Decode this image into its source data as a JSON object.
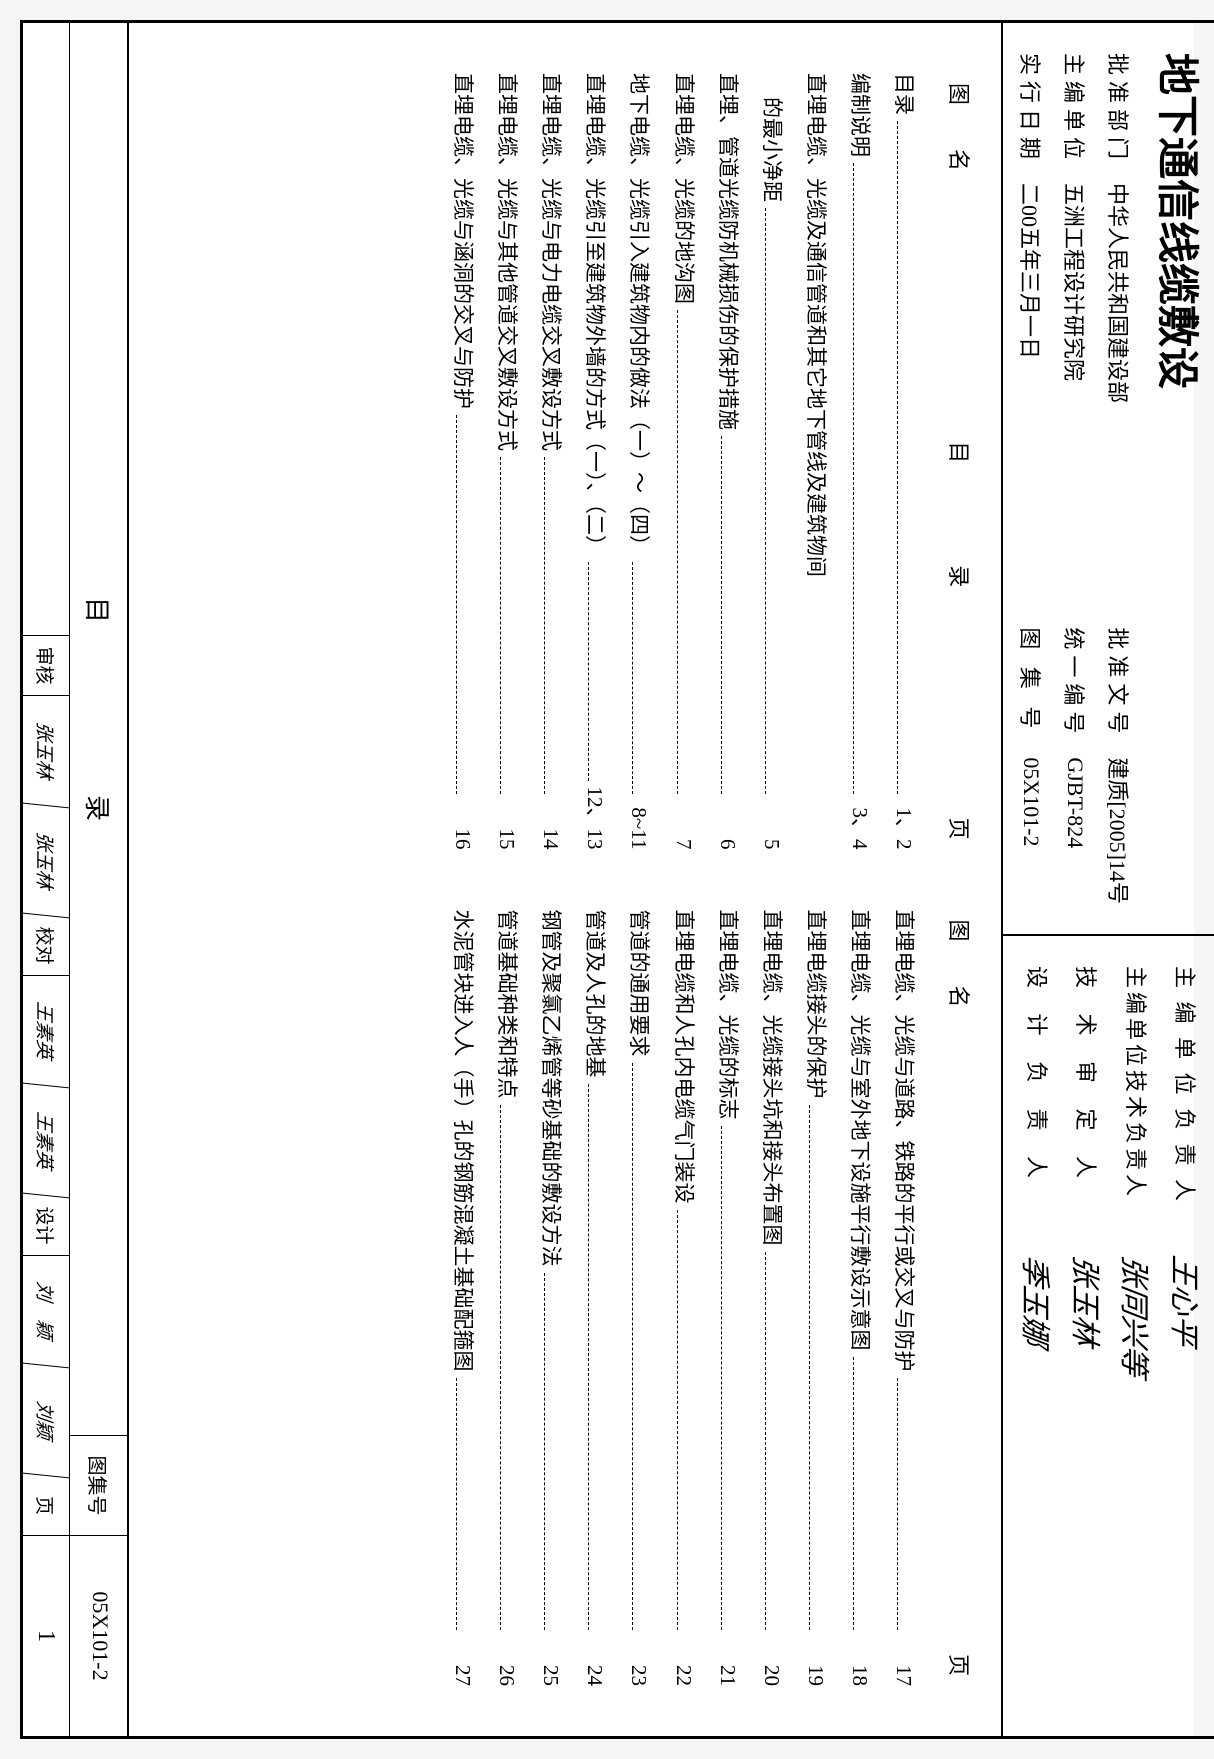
{
  "doc_title": "地下通信线缆敷设",
  "approvals": {
    "dept_label": "批准部门",
    "dept_value": "中华人民共和国建设部",
    "docno_label": "批准文号",
    "docno_value": "建质[2005]14号",
    "editor_label": "主编单位",
    "editor_value": "五洲工程设计研究院",
    "unino_label": "统一编号",
    "unino_value": "GJBT-824",
    "date_label": "实行日期",
    "date_value": "二00五年三月一日",
    "setno_label": "图 集 号",
    "setno_value": "05X101-2"
  },
  "signers": {
    "chief_label": "主 编 单 位 负 责 人",
    "chief_sig": "王心平",
    "tech_label": "主编单位技术负责人",
    "tech_sig": "张同兴等",
    "approve_label": "技 术 审 定 人",
    "approve_sig": "张玉林",
    "design_label": "设 计 负 责 人",
    "design_sig": "季玉娜"
  },
  "toc_header": {
    "tuming": "图　　名",
    "mulu": "目　录",
    "ye": "页"
  },
  "left_col": [
    {
      "name": "目录",
      "page": "1、2"
    },
    {
      "name": "编制说明",
      "page": "3、4"
    },
    {
      "name": "直埋电缆、光缆及通信管道和其它地下管线及建筑物间",
      "page": "",
      "noleader": true
    },
    {
      "name": "的最小净距",
      "page": "5",
      "indent": true
    },
    {
      "name": "直埋、管道光缆防机械损伤的保护措施",
      "page": "6"
    },
    {
      "name": "直埋电缆、光缆的地沟图",
      "page": "7"
    },
    {
      "name": "地下电缆、光缆引入建筑物内的做法（一）～（四）",
      "page": "8~11"
    },
    {
      "name": "直埋电缆、光缆引至建筑物外墙的方式（一）、（二）",
      "page": "12、13"
    },
    {
      "name": "直埋电缆、光缆与电力电缆交叉敷设方式",
      "page": "14"
    },
    {
      "name": "直埋电缆、光缆与其他管道交叉敷设方式",
      "page": "15"
    },
    {
      "name": "直埋电缆、光缆与涵洞的交叉与防护",
      "page": "16"
    }
  ],
  "right_col": [
    {
      "name": "直埋电缆、光缆与道路、铁路的平行或交叉与防护",
      "page": "17"
    },
    {
      "name": "直埋电缆、光缆与室外地下设施平行敷设示意图",
      "page": "18"
    },
    {
      "name": "直埋电缆接头的保护",
      "page": "19"
    },
    {
      "name": "直埋电缆、光缆接头坑和接头布置图",
      "page": "20"
    },
    {
      "name": "直埋电缆、光缆的标志",
      "page": "21"
    },
    {
      "name": "直埋电缆和人孔内电缆气门装设",
      "page": "22"
    },
    {
      "name": "管道的通用要求",
      "page": "23"
    },
    {
      "name": "管道及人孔的地基",
      "page": "24"
    },
    {
      "name": "钢管及聚氯乙烯管等砂基础的敷设方法",
      "page": "25"
    },
    {
      "name": "管道基础种类和特点",
      "page": "26"
    },
    {
      "name": "水泥管块进入人（手）孔的钢筋混凝土基础配箍图",
      "page": "27"
    }
  ],
  "footer": {
    "mulu": "目　　录",
    "tjh_label": "图集号",
    "tjh_value": "05X101-2",
    "shenhe_label": "审核",
    "shenhe_sig": "张玉林",
    "jiaodui_label": "校对",
    "jiaodui_sig": "张玉林",
    "jiaodui2_label": "",
    "wang_sig": "王素英",
    "sheji_label": "设计",
    "liu_sig": "刘　颖",
    "liusig2": "刘颖",
    "page_label": "页",
    "page_value": "1"
  }
}
